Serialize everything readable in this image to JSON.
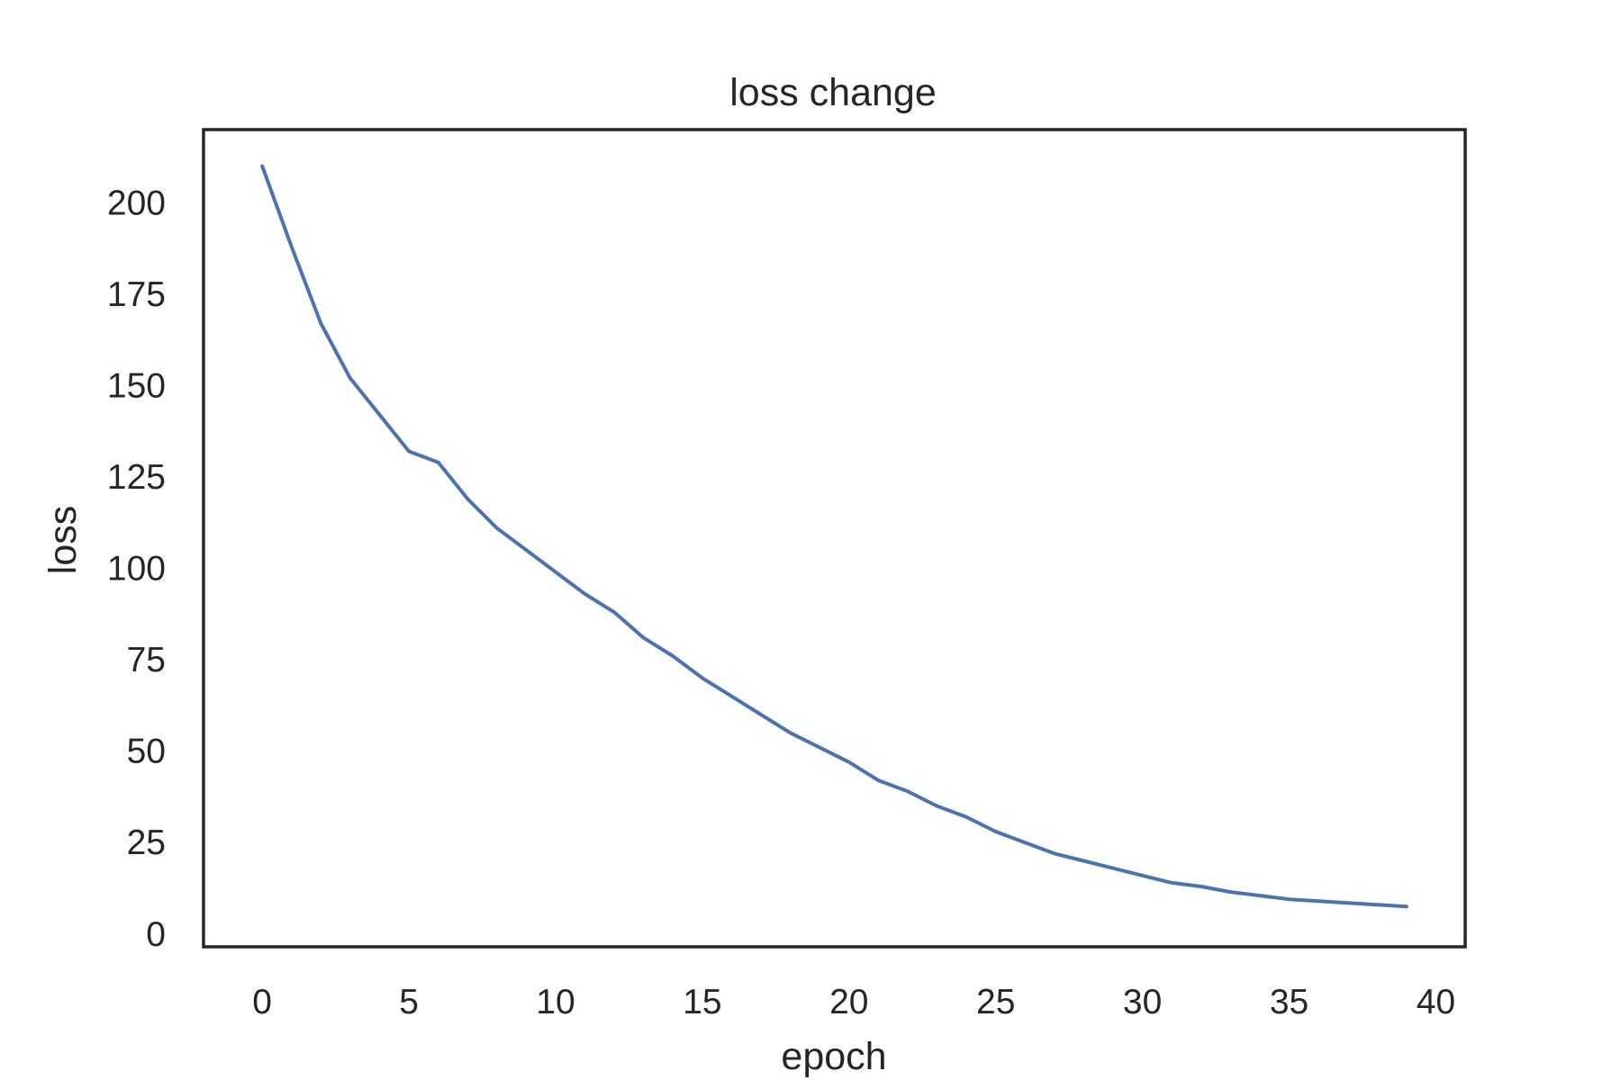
{
  "chart_data": {
    "type": "line",
    "title": "loss change",
    "xlabel": "epoch",
    "ylabel": "loss",
    "xlim": [
      -2,
      41
    ],
    "ylim": [
      -3.5,
      220
    ],
    "xticks": [
      0,
      5,
      10,
      15,
      20,
      25,
      30,
      35,
      40
    ],
    "yticks": [
      0,
      25,
      50,
      75,
      100,
      125,
      150,
      175,
      200
    ],
    "grid": false,
    "series": [
      {
        "color": "#4c72b0",
        "x": [
          0,
          1,
          2,
          3,
          4,
          5,
          6,
          7,
          8,
          9,
          10,
          11,
          12,
          13,
          14,
          15,
          16,
          17,
          18,
          19,
          20,
          21,
          22,
          23,
          24,
          25,
          26,
          27,
          28,
          29,
          30,
          31,
          32,
          33,
          34,
          35,
          36,
          37,
          38,
          39
        ],
        "values": [
          210,
          188,
          167,
          152,
          142,
          132,
          129,
          119,
          111,
          105,
          99,
          93,
          88,
          81,
          76,
          70,
          65,
          60,
          55,
          51,
          47,
          42,
          39,
          35,
          32,
          28,
          25,
          22,
          20,
          18,
          16,
          14,
          13,
          11.5,
          10.5,
          9.5,
          9,
          8.5,
          8,
          7.5
        ]
      }
    ]
  }
}
